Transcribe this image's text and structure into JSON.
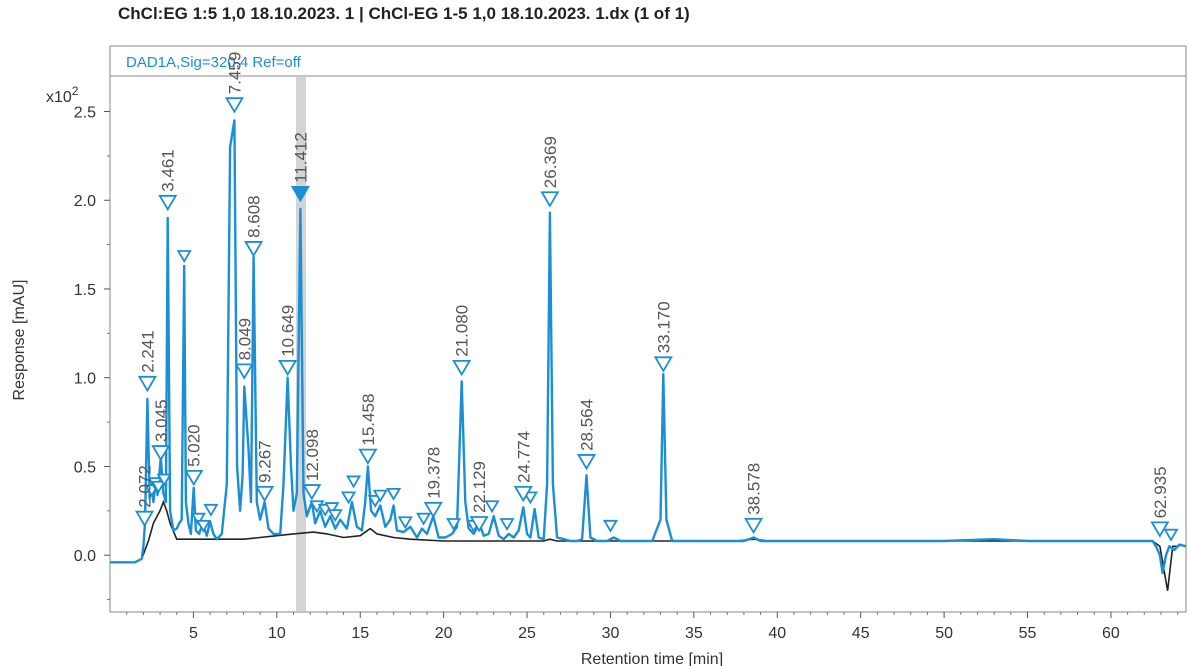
{
  "title": "ChCl:EG 1:5 1,0 18.10.2023. 1 | ChCl-EG 1-5 1,0 18.10.2023. 1.dx (1 of 1)",
  "chart_data": {
    "type": "line",
    "signal_label": "DAD1A,Sig=320,4 Ref=off",
    "y_multiplier_label": "x10",
    "y_multiplier_exponent": "2",
    "xlabel": "Retention time [min]",
    "ylabel": "Response [mAU]",
    "xlim": [
      0.0,
      64.5
    ],
    "ylim": [
      -0.32,
      2.7
    ],
    "x_ticks": [
      5,
      10,
      15,
      20,
      25,
      30,
      35,
      40,
      45,
      50,
      55,
      60
    ],
    "x_tick_labels": [
      "5",
      "10",
      "15",
      "20",
      "25",
      "30",
      "35",
      "40",
      "45",
      "50",
      "55",
      "60"
    ],
    "y_ticks": [
      0.0,
      0.5,
      1.0,
      1.5,
      2.0,
      2.5
    ],
    "y_tick_labels": [
      "0.0",
      "0.5",
      "1.0",
      "1.5",
      "2.0",
      "2.5"
    ],
    "highlight_band": [
      11.15,
      11.75
    ],
    "colors": {
      "trace": "#1b8fd6",
      "baseline": "#222222",
      "highlight": "#d4d4d4",
      "frame": "#8a8a8a"
    },
    "series": [
      {
        "x": [
          0.0,
          1.5,
          1.9,
          2.0,
          2.1,
          2.241,
          2.38,
          2.5,
          2.6,
          2.75,
          2.85,
          3.045,
          3.2,
          3.35,
          3.461,
          3.6,
          3.8,
          4.0,
          4.15,
          4.3,
          4.45,
          4.55,
          4.7,
          4.85,
          5.02,
          5.15,
          5.35,
          5.55,
          5.8,
          6.0,
          6.2,
          6.4,
          6.7,
          7.0,
          7.2,
          7.459,
          7.62,
          7.8,
          7.95,
          8.049,
          8.3,
          8.45,
          8.608,
          8.8,
          9.0,
          9.267,
          9.5,
          9.8,
          10.2,
          10.4,
          10.649,
          10.85,
          11.0,
          11.2,
          11.412,
          11.6,
          11.8,
          12.098,
          12.3,
          12.6,
          12.9,
          13.2,
          13.5,
          13.8,
          14.2,
          14.5,
          14.8,
          15.1,
          15.3,
          15.458,
          15.65,
          15.9,
          16.2,
          16.5,
          16.8,
          17.0,
          17.2,
          17.6,
          18.0,
          18.4,
          18.7,
          19.0,
          19.378,
          19.7,
          20.1,
          20.5,
          20.8,
          21.08,
          21.3,
          21.5,
          21.8,
          22.129,
          22.4,
          22.7,
          23.0,
          23.3,
          23.6,
          23.9,
          24.2,
          24.5,
          24.774,
          25.0,
          25.2,
          25.45,
          25.7,
          26.0,
          26.2,
          26.369,
          26.55,
          26.8,
          27.2,
          27.6,
          28.0,
          28.3,
          28.564,
          28.8,
          29.2,
          29.8,
          30.2,
          30.6,
          31.5,
          32.5,
          33.0,
          33.17,
          33.35,
          33.7,
          34.5,
          36.0,
          38.0,
          38.578,
          39.0,
          40.0,
          45.0,
          50.0,
          53.0,
          55.0,
          60.0,
          62.5,
          62.7,
          62.935,
          63.1,
          63.3,
          63.5,
          63.8,
          64.1,
          64.5
        ],
        "y": [
          -0.04,
          -0.04,
          -0.02,
          0.05,
          0.18,
          0.88,
          0.32,
          0.4,
          0.3,
          0.42,
          0.34,
          0.55,
          0.35,
          0.3,
          1.9,
          0.25,
          0.14,
          0.15,
          0.18,
          0.2,
          1.63,
          0.3,
          0.18,
          0.12,
          0.38,
          0.14,
          0.12,
          0.18,
          0.11,
          0.19,
          0.12,
          0.09,
          0.12,
          0.4,
          2.3,
          2.45,
          0.5,
          0.25,
          0.45,
          0.95,
          0.6,
          0.3,
          1.68,
          0.3,
          0.2,
          0.3,
          0.15,
          0.12,
          0.12,
          0.4,
          1.0,
          0.5,
          0.25,
          0.35,
          1.95,
          0.35,
          0.22,
          0.3,
          0.18,
          0.25,
          0.16,
          0.22,
          0.15,
          0.2,
          0.15,
          0.3,
          0.16,
          0.14,
          0.3,
          0.5,
          0.25,
          0.22,
          0.28,
          0.16,
          0.2,
          0.28,
          0.14,
          0.13,
          0.16,
          0.1,
          0.15,
          0.12,
          0.22,
          0.1,
          0.1,
          0.12,
          0.16,
          0.98,
          0.3,
          0.15,
          0.12,
          0.18,
          0.11,
          0.12,
          0.22,
          0.11,
          0.09,
          0.12,
          0.1,
          0.14,
          0.27,
          0.12,
          0.1,
          0.26,
          0.1,
          0.09,
          0.4,
          1.93,
          0.4,
          0.1,
          0.09,
          0.08,
          0.08,
          0.09,
          0.45,
          0.1,
          0.08,
          0.08,
          0.1,
          0.08,
          0.08,
          0.08,
          0.2,
          1.02,
          0.2,
          0.08,
          0.08,
          0.08,
          0.08,
          0.1,
          0.08,
          0.08,
          0.08,
          0.08,
          0.09,
          0.08,
          0.08,
          0.08,
          0.05,
          0.0,
          -0.1,
          0.0,
          0.05,
          0.03,
          0.06,
          0.05
        ]
      }
    ],
    "baseline": {
      "x": [
        1.9,
        2.3,
        2.6,
        3.0,
        3.2,
        3.4,
        3.6,
        4.0,
        4.8,
        6.0,
        7.0,
        8.0,
        9.0,
        10.0,
        11.0,
        12.2,
        13.0,
        14.0,
        15.0,
        15.6,
        16.0,
        17.0,
        18.0,
        20.0,
        21.5,
        24.0,
        26.0,
        26.369,
        26.8,
        28.0,
        29.0,
        30.0,
        32.5,
        33.5,
        37.5,
        38.578,
        39.5,
        62.5,
        62.935,
        63.4,
        63.7,
        64.1
      ],
      "y": [
        -0.02,
        0.08,
        0.18,
        0.25,
        0.3,
        0.25,
        0.18,
        0.09,
        0.09,
        0.09,
        0.09,
        0.09,
        0.1,
        0.11,
        0.12,
        0.13,
        0.12,
        0.1,
        0.11,
        0.15,
        0.12,
        0.1,
        0.09,
        0.08,
        0.08,
        0.08,
        0.08,
        0.09,
        0.08,
        0.08,
        0.08,
        0.08,
        0.08,
        0.08,
        0.08,
        0.09,
        0.08,
        0.08,
        0.05,
        -0.2,
        0.05,
        0.05
      ]
    },
    "peaks": [
      {
        "label": "2.072",
        "x": 2.072,
        "y": 0.2
      },
      {
        "label": "2.241",
        "x": 2.241,
        "y": 0.96
      },
      {
        "label": "3.045",
        "x": 3.045,
        "y": 0.57
      },
      {
        "label": "3.461",
        "x": 3.461,
        "y": 1.98
      },
      {
        "label": "5.020",
        "x": 5.02,
        "y": 0.43
      },
      {
        "label": "7.459",
        "x": 7.459,
        "y": 2.53
      },
      {
        "label": "8.049",
        "x": 8.049,
        "y": 1.03
      },
      {
        "label": "8.608",
        "x": 8.608,
        "y": 1.72
      },
      {
        "label": "9.267",
        "x": 9.267,
        "y": 0.34
      },
      {
        "label": "10.649",
        "x": 10.649,
        "y": 1.05
      },
      {
        "label": "11.412",
        "x": 11.412,
        "y": 2.03
      },
      {
        "label": "12.098",
        "x": 12.098,
        "y": 0.35
      },
      {
        "label": "15.458",
        "x": 15.458,
        "y": 0.55
      },
      {
        "label": "19.378",
        "x": 19.378,
        "y": 0.25
      },
      {
        "label": "21.080",
        "x": 21.08,
        "y": 1.05
      },
      {
        "label": "22.129",
        "x": 22.129,
        "y": 0.17
      },
      {
        "label": "24.774",
        "x": 24.774,
        "y": 0.34
      },
      {
        "label": "26.369",
        "x": 26.369,
        "y": 2.0
      },
      {
        "label": "28.564",
        "x": 28.564,
        "y": 0.52
      },
      {
        "label": "33.170",
        "x": 33.17,
        "y": 1.07
      },
      {
        "label": "38.578",
        "x": 38.578,
        "y": 0.16
      },
      {
        "label": "62.935",
        "x": 62.935,
        "y": 0.14
      }
    ],
    "extra_markers": [
      {
        "x": 2.5,
        "y": 0.36
      },
      {
        "x": 2.7,
        "y": 0.4
      },
      {
        "x": 2.9,
        "y": 0.38
      },
      {
        "x": 3.25,
        "y": 0.42
      },
      {
        "x": 4.45,
        "y": 1.68
      },
      {
        "x": 5.3,
        "y": 0.2
      },
      {
        "x": 5.6,
        "y": 0.16
      },
      {
        "x": 6.05,
        "y": 0.25
      },
      {
        "x": 12.4,
        "y": 0.27
      },
      {
        "x": 12.9,
        "y": 0.25
      },
      {
        "x": 13.3,
        "y": 0.26
      },
      {
        "x": 13.5,
        "y": 0.22
      },
      {
        "x": 14.3,
        "y": 0.32
      },
      {
        "x": 14.6,
        "y": 0.41
      },
      {
        "x": 15.9,
        "y": 0.3
      },
      {
        "x": 16.2,
        "y": 0.33
      },
      {
        "x": 17.0,
        "y": 0.34
      },
      {
        "x": 17.7,
        "y": 0.18
      },
      {
        "x": 18.8,
        "y": 0.2
      },
      {
        "x": 20.6,
        "y": 0.17
      },
      {
        "x": 21.8,
        "y": 0.16
      },
      {
        "x": 22.9,
        "y": 0.27
      },
      {
        "x": 23.8,
        "y": 0.17
      },
      {
        "x": 25.2,
        "y": 0.32
      },
      {
        "x": 30.0,
        "y": 0.16
      },
      {
        "x": 63.6,
        "y": 0.11
      }
    ]
  }
}
